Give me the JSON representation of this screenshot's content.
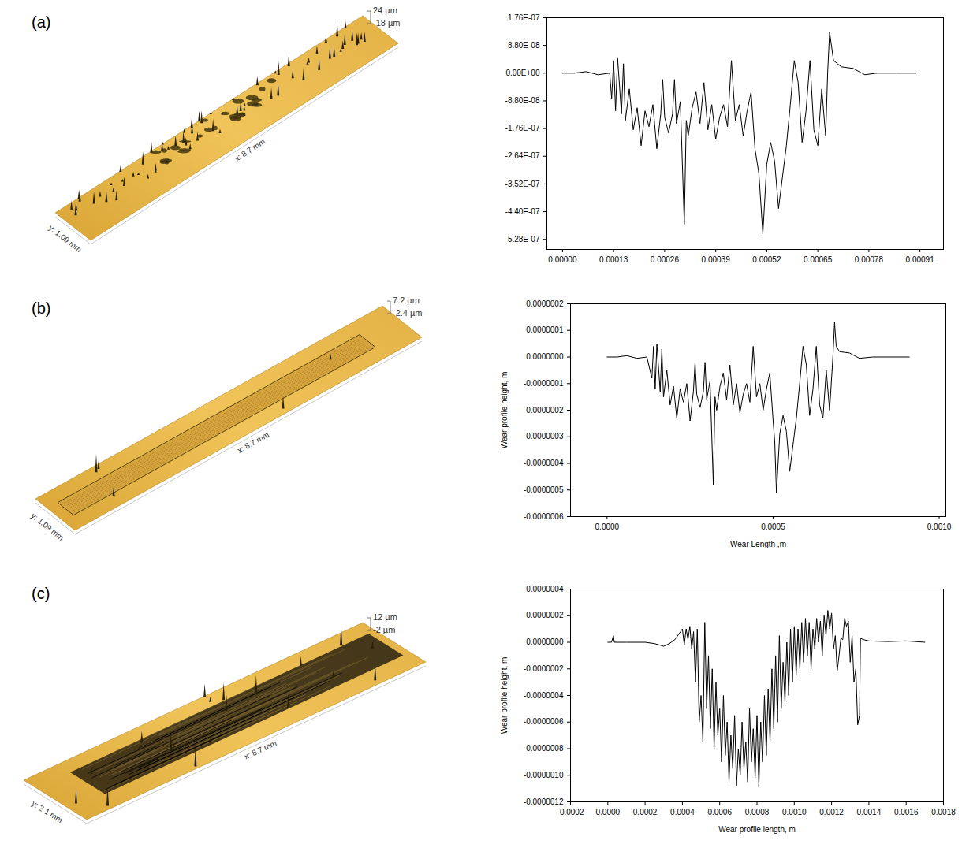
{
  "chart_data": [
    {
      "panel": "(a)",
      "type": "line",
      "color": "#000000",
      "grid": false,
      "surface": {
        "z_max": "24 µm",
        "z_min": "-18 µm",
        "x_size": "x: 8.7 mm",
        "y_size": "y: 1.09 mm"
      },
      "xlim": [
        -4e-05,
        0.00097
      ],
      "xticks": [
        {
          "value": 0,
          "label": "0.00000"
        },
        {
          "value": 0.00013,
          "label": "0.00013"
        },
        {
          "value": 0.00026,
          "label": "0.00026"
        },
        {
          "value": 0.00039,
          "label": "0.00039"
        },
        {
          "value": 0.00052,
          "label": "0.00052"
        },
        {
          "value": 0.00065,
          "label": "0.00065"
        },
        {
          "value": 0.00078,
          "label": "0.00078"
        },
        {
          "value": 0.00091,
          "label": "0.00091"
        }
      ],
      "ylim": [
        -5.6e-07,
        1.76e-07
      ],
      "yticks": [
        {
          "value": 1.76e-07,
          "label": "1.76E-07"
        },
        {
          "value": 8.8e-08,
          "label": "8.80E-08"
        },
        {
          "value": 0,
          "label": "0.00E+00"
        },
        {
          "value": -8.8e-08,
          "label": "-8.80E-08"
        },
        {
          "value": -1.76e-07,
          "label": "-1.76E-07"
        },
        {
          "value": -2.64e-07,
          "label": "-2.64E-07"
        },
        {
          "value": -3.52e-07,
          "label": "-3.52E-07"
        },
        {
          "value": -4.4e-07,
          "label": "-4.40E-07"
        },
        {
          "value": -5.28e-07,
          "label": "-5.28E-07"
        }
      ],
      "x": [
        0,
        3e-05,
        6e-05,
        9e-05,
        0.00012,
        0.000125,
        0.00013,
        0.000135,
        0.00014,
        0.00015,
        0.000155,
        0.00016,
        0.00017,
        0.00018,
        0.00019,
        0.0002,
        0.00021,
        0.00022,
        0.00023,
        0.00024,
        0.00025,
        0.000255,
        0.00026,
        0.00027,
        0.00028,
        0.000285,
        0.00029,
        0.0003,
        0.00031,
        0.000315,
        0.00032,
        0.00033,
        0.00034,
        0.00035,
        0.00036,
        0.00037,
        0.00038,
        0.00039,
        0.0004,
        0.00041,
        0.00042,
        0.00043,
        0.00044,
        0.00045,
        0.00046,
        0.00047,
        0.00048,
        0.00049,
        0.0005,
        0.00051,
        0.00052,
        0.00053,
        0.00054,
        0.00055,
        0.00056,
        0.00057,
        0.00058,
        0.00059,
        0.0006,
        0.00061,
        0.00062,
        0.00063,
        0.00064,
        0.00065,
        0.00066,
        0.00067,
        0.000675,
        0.00068,
        0.00069,
        0.00071,
        0.00074,
        0.00077,
        0.0008,
        0.00085,
        0.0009
      ],
      "values": [
        0,
        0,
        5e-09,
        -5e-09,
        0,
        -8e-08,
        4e-08,
        -1.2e-07,
        5e-08,
        -1.3e-07,
        3e-08,
        -1.5e-07,
        -5e-08,
        -1.8e-07,
        -1.1e-07,
        -2.3e-07,
        -1.2e-07,
        -1.7e-07,
        -1e-07,
        -2.4e-07,
        -1.3e-07,
        -2e-08,
        -1.4e-07,
        -1.9e-07,
        -1.3e-07,
        -2e-08,
        -1.6e-07,
        -9e-08,
        -4.8e-07,
        -1.5e-07,
        -2e-07,
        -1.1e-07,
        -6e-08,
        -1.6e-07,
        -3e-08,
        -1.8e-07,
        -1e-07,
        -2.1e-07,
        -1.4e-07,
        -1e-07,
        -1.7e-07,
        4e-08,
        -1.5e-07,
        -1e-07,
        -2e-07,
        -1.2e-07,
        -6e-08,
        -2.4e-07,
        -3.2e-07,
        -5.1e-07,
        -2.9e-07,
        -2.2e-07,
        -2.8e-07,
        -4.3e-07,
        -3.3e-07,
        -2.3e-07,
        -1e-07,
        4e-08,
        -3e-08,
        -2.2e-07,
        -1.2e-07,
        4e-08,
        -1.8e-07,
        -2.3e-07,
        -5e-08,
        -2e-07,
        0,
        1.3e-07,
        4e-08,
        2e-08,
        1.5e-08,
        -5e-09,
        0,
        0,
        0
      ]
    },
    {
      "panel": "(b)",
      "type": "line",
      "color": "#000000",
      "grid": false,
      "surface": {
        "z_max": "7.2 µm",
        "z_min": "-2.4 µm",
        "x_size": "x: 8.7 mm",
        "y_size": "y: 1.09 mm"
      },
      "x_label": "Wear Length ,m",
      "y_label": "Wear profile height, m",
      "xlim": [
        -0.00011,
        0.00102
      ],
      "xticks": [
        {
          "value": 0,
          "label": "0.0000"
        },
        {
          "value": 0.0005,
          "label": "0.0005"
        },
        {
          "value": 0.001,
          "label": "0.0010"
        }
      ],
      "ylim": [
        -6e-07,
        2e-07
      ],
      "yticks": [
        {
          "value": 2e-07,
          "label": "0.0000002"
        },
        {
          "value": 1e-07,
          "label": "0.0000001"
        },
        {
          "value": 0,
          "label": "0.0000000"
        },
        {
          "value": -1e-07,
          "label": "-0.0000001"
        },
        {
          "value": -2e-07,
          "label": "-0.0000002"
        },
        {
          "value": -3e-07,
          "label": "-0.0000003"
        },
        {
          "value": -4e-07,
          "label": "-0.0000004"
        },
        {
          "value": -5e-07,
          "label": "-0.0000005"
        },
        {
          "value": -6e-07,
          "label": "-0.0000006"
        }
      ],
      "x": [
        0,
        3e-05,
        6e-05,
        9e-05,
        0.00012,
        0.000135,
        0.00014,
        0.000145,
        0.00015,
        0.00016,
        0.000165,
        0.00017,
        0.00018,
        0.00019,
        0.0002,
        0.00021,
        0.00022,
        0.00023,
        0.00024,
        0.00025,
        0.00026,
        0.000265,
        0.00027,
        0.00028,
        0.00029,
        0.000295,
        0.0003,
        0.00031,
        0.00032,
        0.000325,
        0.00033,
        0.00034,
        0.00035,
        0.00036,
        0.00037,
        0.00038,
        0.00039,
        0.0004,
        0.00041,
        0.00042,
        0.00043,
        0.00044,
        0.00045,
        0.00046,
        0.00047,
        0.00048,
        0.00049,
        0.0005,
        0.000505,
        0.00051,
        0.00052,
        0.00053,
        0.00054,
        0.00055,
        0.00056,
        0.00057,
        0.00058,
        0.00059,
        0.0006,
        0.00061,
        0.00062,
        0.00063,
        0.00064,
        0.00065,
        0.00066,
        0.00067,
        0.00068,
        0.000685,
        0.00069,
        0.0007,
        0.00073,
        0.00076,
        0.0008,
        0.00085,
        0.00091
      ],
      "values": [
        0,
        0,
        5e-09,
        -5e-09,
        0,
        -8e-08,
        4e-08,
        -1.2e-07,
        5e-08,
        -1.3e-07,
        3e-08,
        -1.5e-07,
        -5e-08,
        -1.8e-07,
        -1.1e-07,
        -2.3e-07,
        -1.2e-07,
        -1.7e-07,
        -1e-07,
        -2.4e-07,
        -1.3e-07,
        -2e-08,
        -1.4e-07,
        -1.9e-07,
        -1.3e-07,
        -2e-08,
        -1.6e-07,
        -9e-08,
        -4.8e-07,
        -1.5e-07,
        -2e-07,
        -1.1e-07,
        -6e-08,
        -1.6e-07,
        -3e-08,
        -1.8e-07,
        -1e-07,
        -2.1e-07,
        -1.4e-07,
        -1e-07,
        -1.7e-07,
        4e-08,
        -1.5e-07,
        -1e-07,
        -2e-07,
        -1.2e-07,
        -6e-08,
        -2.4e-07,
        -3.2e-07,
        -5.1e-07,
        -2.9e-07,
        -2.2e-07,
        -2.8e-07,
        -4.3e-07,
        -3.3e-07,
        -2.3e-07,
        -1e-07,
        4e-08,
        -3e-08,
        -2.2e-07,
        -1.2e-07,
        4e-08,
        -1.8e-07,
        -2.3e-07,
        -5e-08,
        -2e-07,
        0,
        1.3e-07,
        4e-08,
        2e-08,
        1.5e-08,
        -5e-09,
        0,
        0,
        0
      ]
    },
    {
      "panel": "(c)",
      "type": "line",
      "color": "#000000",
      "grid": false,
      "surface": {
        "z_max": "12 µm",
        "z_min": "-2 µm",
        "x_size": "x: 8.7 mm",
        "y_size": "y: 2.1 mm"
      },
      "x_label": "Wear profile length, m",
      "y_label": "Wear profile height, m",
      "xlim": [
        -0.0002,
        0.0018
      ],
      "xticks": [
        {
          "value": -0.0002,
          "label": "-0.0002"
        },
        {
          "value": 0,
          "label": "0.0000"
        },
        {
          "value": 0.0002,
          "label": "0.0002"
        },
        {
          "value": 0.0004,
          "label": "0.0004"
        },
        {
          "value": 0.0006,
          "label": "0.0006"
        },
        {
          "value": 0.0008,
          "label": "0.0008"
        },
        {
          "value": 0.001,
          "label": "0.0010"
        },
        {
          "value": 0.0012,
          "label": "0.0012"
        },
        {
          "value": 0.0014,
          "label": "0.0014"
        },
        {
          "value": 0.0016,
          "label": "0.0016"
        },
        {
          "value": 0.0018,
          "label": "0.0018"
        }
      ],
      "ylim": [
        -1.2e-06,
        4e-07
      ],
      "yticks": [
        {
          "value": 4e-07,
          "label": "0.0000004"
        },
        {
          "value": 2e-07,
          "label": "0.0000002"
        },
        {
          "value": 0,
          "label": "0.0000000"
        },
        {
          "value": -2e-07,
          "label": "-0.0000002"
        },
        {
          "value": -4e-07,
          "label": "-0.0000004"
        },
        {
          "value": -6e-07,
          "label": "-0.0000006"
        },
        {
          "value": -8e-07,
          "label": "-0.0000008"
        },
        {
          "value": -1e-06,
          "label": "-0.0000010"
        },
        {
          "value": -1.2e-06,
          "label": "-0.0000012"
        }
      ],
      "x": [
        0,
        2e-05,
        3e-05,
        3.5e-05,
        0.0001,
        0.0002,
        0.00025,
        0.0003,
        0.00033,
        0.00036,
        0.00038,
        0.0004,
        0.00041,
        0.00042,
        0.00043,
        0.00044,
        0.00045,
        0.00046,
        0.00047,
        0.00048,
        0.00049,
        0.0005,
        0.00051,
        0.00052,
        0.00053,
        0.00054,
        0.00055,
        0.00056,
        0.00057,
        0.00058,
        0.00059,
        0.0006,
        0.00061,
        0.00062,
        0.00063,
        0.00064,
        0.00065,
        0.00066,
        0.00067,
        0.00068,
        0.00069,
        0.0007,
        0.00071,
        0.00072,
        0.00073,
        0.00074,
        0.00075,
        0.00076,
        0.00077,
        0.00078,
        0.00079,
        0.0008,
        0.00081,
        0.00082,
        0.00083,
        0.00084,
        0.00085,
        0.00086,
        0.00087,
        0.00088,
        0.00089,
        0.0009,
        0.00091,
        0.00092,
        0.00093,
        0.00094,
        0.00095,
        0.00096,
        0.00097,
        0.00098,
        0.00099,
        0.001,
        0.00101,
        0.00102,
        0.00103,
        0.00104,
        0.00105,
        0.00106,
        0.00107,
        0.00108,
        0.00109,
        0.0011,
        0.00111,
        0.00112,
        0.00113,
        0.00114,
        0.00115,
        0.00116,
        0.00117,
        0.00118,
        0.00119,
        0.0012,
        0.00121,
        0.00122,
        0.00123,
        0.00124,
        0.00125,
        0.00126,
        0.00127,
        0.00128,
        0.00129,
        0.0013,
        0.00131,
        0.00132,
        0.00133,
        0.00134,
        0.00135,
        0.001355,
        0.00137,
        0.0014,
        0.0015,
        0.0016,
        0.0017
      ],
      "values": [
        0,
        0,
        5e-08,
        0,
        0,
        0,
        -1e-08,
        -3e-08,
        -1e-08,
        2e-08,
        6e-08,
        1e-07,
        -2e-08,
        1e-07,
        2e-08,
        1.2e-07,
        -5e-08,
        8e-08,
        -3e-07,
        1e-07,
        -6e-07,
        -4e-07,
        -7.5e-07,
        1.5e-07,
        -5e-07,
        -1e-07,
        -6.5e-07,
        -2e-07,
        -8e-07,
        -3e-07,
        -7e-07,
        -5e-07,
        -9e-07,
        -4e-07,
        -8.5e-07,
        -6e-07,
        -1.05e-06,
        -7e-07,
        -9.5e-07,
        -5.5e-07,
        -1.08e-06,
        -8e-07,
        -1e-06,
        -6e-07,
        -9.5e-07,
        -7.5e-07,
        -1.05e-06,
        -5e-07,
        -9e-07,
        -6.5e-07,
        -1.02e-06,
        -5.5e-07,
        -1.09e-06,
        -6e-07,
        -9e-07,
        -4e-07,
        -8.5e-07,
        -3.5e-07,
        -7.5e-07,
        -2e-07,
        -6.5e-07,
        -1e-07,
        -6e-07,
        5e-08,
        -5e-07,
        -1.5e-07,
        -4.5e-07,
        0,
        -4e-07,
        1e-07,
        -3e-07,
        1.2e-07,
        -2.5e-07,
        1e-07,
        -2e-07,
        1.5e-07,
        -1.5e-07,
        1.8e-07,
        -1e-07,
        1.5e-07,
        -2e-07,
        1e-07,
        -5e-08,
        1.8e-07,
        0,
        1.6e-07,
        -1e-07,
        2e-07,
        5e-08,
        2.4e-07,
        1e-07,
        2.2e-07,
        -5e-08,
        5e-08,
        -2.2e-07,
        -1e-07,
        3e-08,
        2e-08,
        1.8e-07,
        1.2e-07,
        1.6e-07,
        -1.5e-07,
        5e-08,
        -3e-07,
        -2e-07,
        -6.2e-07,
        -5.5e-07,
        3e-08,
        2e-08,
        1e-08,
        5e-09,
        1e-08,
        0
      ]
    }
  ]
}
